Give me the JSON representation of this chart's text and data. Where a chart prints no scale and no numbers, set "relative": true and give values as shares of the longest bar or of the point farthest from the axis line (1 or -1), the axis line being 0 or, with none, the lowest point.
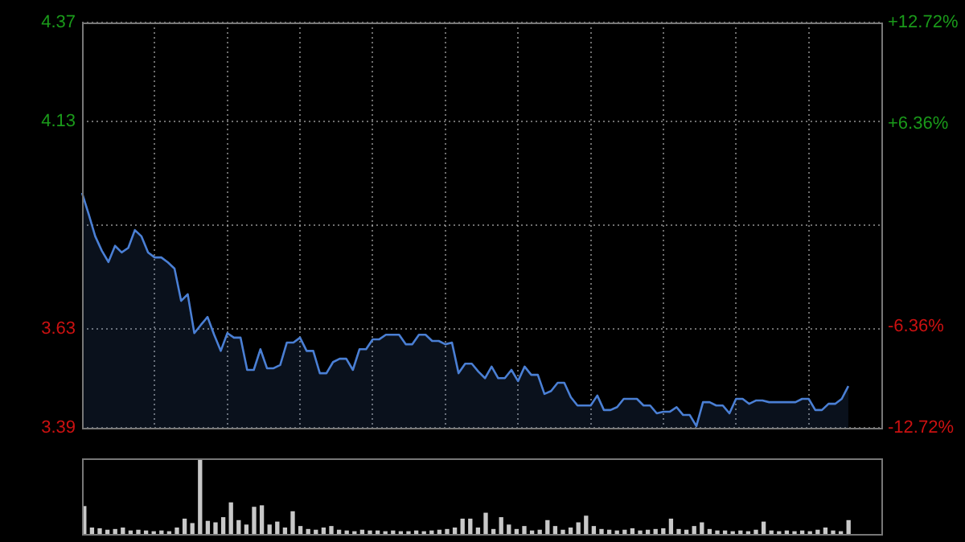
{
  "chart_data": [
    {
      "type": "area",
      "categories": [
        null,
        null,
        null,
        null,
        null,
        null,
        null,
        null,
        null,
        null,
        null,
        null,
        null,
        null,
        null,
        null,
        null,
        null,
        null,
        null,
        null,
        null,
        null,
        null,
        null,
        null,
        null,
        null,
        null,
        null,
        null,
        null,
        null,
        null,
        null,
        null,
        null,
        null,
        null,
        null,
        null,
        null,
        null,
        null,
        null,
        null,
        null,
        null,
        null,
        null,
        null,
        null,
        null,
        null,
        null,
        null,
        null,
        null,
        null,
        null,
        null,
        null,
        null,
        null,
        null,
        null,
        null,
        null,
        null,
        null,
        null,
        null,
        null,
        null,
        null,
        null,
        null,
        null,
        null,
        null,
        null,
        null,
        null,
        null,
        null,
        null,
        null,
        null,
        null,
        null,
        null,
        null,
        null,
        null,
        null,
        null,
        null,
        null,
        null,
        null,
        null,
        null,
        null,
        null,
        null,
        null,
        null,
        null,
        null,
        null,
        null,
        null,
        null,
        null,
        null,
        null,
        null,
        null,
        null,
        null,
        null,
        null
      ],
      "ylim": [
        3.39,
        4.37
      ],
      "yticks": [
        3.39,
        3.63,
        {
          "value": 3.88,
          "label": null
        },
        4.13,
        4.37
      ],
      "y2lim": [
        -12.72,
        12.72
      ],
      "y2ticks": [
        {
          "value": -12.72,
          "label": "-12.72%"
        },
        {
          "value": -6.36,
          "label": "-6.36%"
        },
        {
          "value": 0,
          "label": null
        },
        {
          "value": 6.36,
          "label": "+6.36%"
        },
        {
          "value": 12.72,
          "label": "+12.72%"
        }
      ],
      "tick_labels": "y",
      "grid": true,
      "legend": false,
      "marker": "none",
      "series": [
        {
          "color": "#4a7fd4",
          "values": [
            3.958,
            3.907,
            3.853,
            3.818,
            3.791,
            3.83,
            3.814,
            3.825,
            3.868,
            3.853,
            3.814,
            3.802,
            3.802,
            3.79,
            3.775,
            3.697,
            3.713,
            3.619,
            3.639,
            3.658,
            3.615,
            3.576,
            3.619,
            3.608,
            3.608,
            3.53,
            3.53,
            3.58,
            3.534,
            3.534,
            3.542,
            3.596,
            3.596,
            3.608,
            3.576,
            3.576,
            3.522,
            3.522,
            3.549,
            3.557,
            3.557,
            3.53,
            3.58,
            3.58,
            3.604,
            3.604,
            3.615,
            3.615,
            3.615,
            3.592,
            3.592,
            3.615,
            3.615,
            3.6,
            3.6,
            3.592,
            3.596,
            3.522,
            3.545,
            3.545,
            3.526,
            3.51,
            3.538,
            3.51,
            3.51,
            3.53,
            3.503,
            3.538,
            3.518,
            3.518,
            3.472,
            3.479,
            3.499,
            3.499,
            3.464,
            3.444,
            3.444,
            3.444,
            3.468,
            3.433,
            3.433,
            3.44,
            3.46,
            3.46,
            3.46,
            3.444,
            3.444,
            3.425,
            3.429,
            3.429,
            3.44,
            3.421,
            3.421,
            3.394,
            3.452,
            3.452,
            3.444,
            3.444,
            3.425,
            3.46,
            3.46,
            3.448,
            3.456,
            3.456,
            3.452,
            3.452,
            3.452,
            3.452,
            3.452,
            3.46,
            3.46,
            3.433,
            3.433,
            3.448,
            3.448,
            3.46,
            3.491,
            null,
            null,
            null,
            null,
            null
          ]
        }
      ]
    },
    {
      "type": "bar",
      "relative": true,
      "color": "#c8c8c8",
      "categories": [
        null,
        null,
        null,
        null,
        null,
        null,
        null,
        null,
        null,
        null,
        null,
        null,
        null,
        null,
        null,
        null,
        null,
        null,
        null,
        null,
        null,
        null,
        null,
        null,
        null,
        null,
        null,
        null,
        null,
        null,
        null,
        null,
        null,
        null,
        null,
        null,
        null,
        null,
        null,
        null,
        null,
        null,
        null,
        null,
        null,
        null,
        null,
        null,
        null,
        null,
        null,
        null,
        null,
        null,
        null,
        null,
        null,
        null,
        null,
        null,
        null,
        null,
        null,
        null,
        null,
        null,
        null,
        null,
        null,
        null,
        null,
        null,
        null,
        null,
        null,
        null,
        null,
        null,
        null,
        null,
        null,
        null,
        null,
        null,
        null,
        null,
        null,
        null,
        null,
        null,
        null,
        null,
        null,
        null,
        null,
        null,
        null,
        null,
        null,
        null
      ],
      "values": [
        0.37,
        0.08,
        0.07,
        0.05,
        0.06,
        0.08,
        0.04,
        0.05,
        0.04,
        0.03,
        0.04,
        0.03,
        0.08,
        0.2,
        0.14,
        1,
        0.17,
        0.15,
        0.22,
        0.42,
        0.18,
        0.12,
        0.36,
        0.38,
        0.12,
        0.16,
        0.08,
        0.3,
        0.1,
        0.06,
        0.05,
        0.08,
        0.1,
        0.05,
        0.04,
        0.03,
        0.05,
        0.04,
        0.04,
        0.03,
        0.04,
        0.03,
        0.03,
        0.04,
        0.03,
        0.04,
        0.05,
        0.06,
        0.08,
        0.2,
        0.2,
        0.08,
        0.28,
        0.06,
        0.22,
        0.12,
        0.06,
        0.1,
        0.04,
        0.05,
        0.18,
        0.1,
        0.05,
        0.08,
        0.15,
        0.24,
        0.1,
        0.06,
        0.05,
        0.04,
        0.05,
        0.07,
        0.04,
        0.05,
        0.06,
        0.07,
        0.2,
        0.06,
        0.05,
        0.1,
        0.15,
        0.06,
        0.04,
        0.04,
        0.03,
        0.04,
        0.03,
        0.05,
        0.16,
        0.04,
        0.03,
        0.04,
        0.03,
        0.04,
        0.03,
        0.05,
        0.08,
        0.04,
        0.03,
        0.18
      ]
    }
  ]
}
